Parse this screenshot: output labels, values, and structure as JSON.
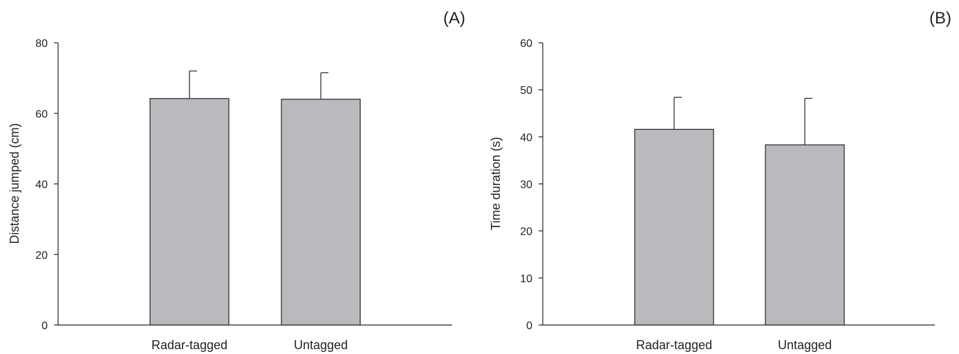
{
  "chart_data": [
    {
      "type": "bar",
      "panel_label": "(A)",
      "categories": [
        "Radar-tagged",
        "Untagged"
      ],
      "values": [
        64.2,
        64.0
      ],
      "error_upper": [
        72.0,
        71.5
      ],
      "ylabel": "Distance jumped (cm)",
      "xlabel": "",
      "ylim": [
        0,
        80
      ],
      "yticks": [
        0,
        20,
        40,
        60,
        80
      ],
      "grid": false,
      "bar_color": "#b9babe"
    },
    {
      "type": "bar",
      "panel_label": "(B)",
      "categories": [
        "Radar-tagged",
        "Untagged"
      ],
      "values": [
        41.6,
        38.3
      ],
      "error_upper": [
        48.4,
        48.2
      ],
      "ylabel": "Time duration (s)",
      "xlabel": "",
      "ylim": [
        0,
        60
      ],
      "yticks": [
        0,
        10,
        20,
        30,
        40,
        50,
        60
      ],
      "grid": false,
      "bar_color": "#b9babe"
    }
  ]
}
